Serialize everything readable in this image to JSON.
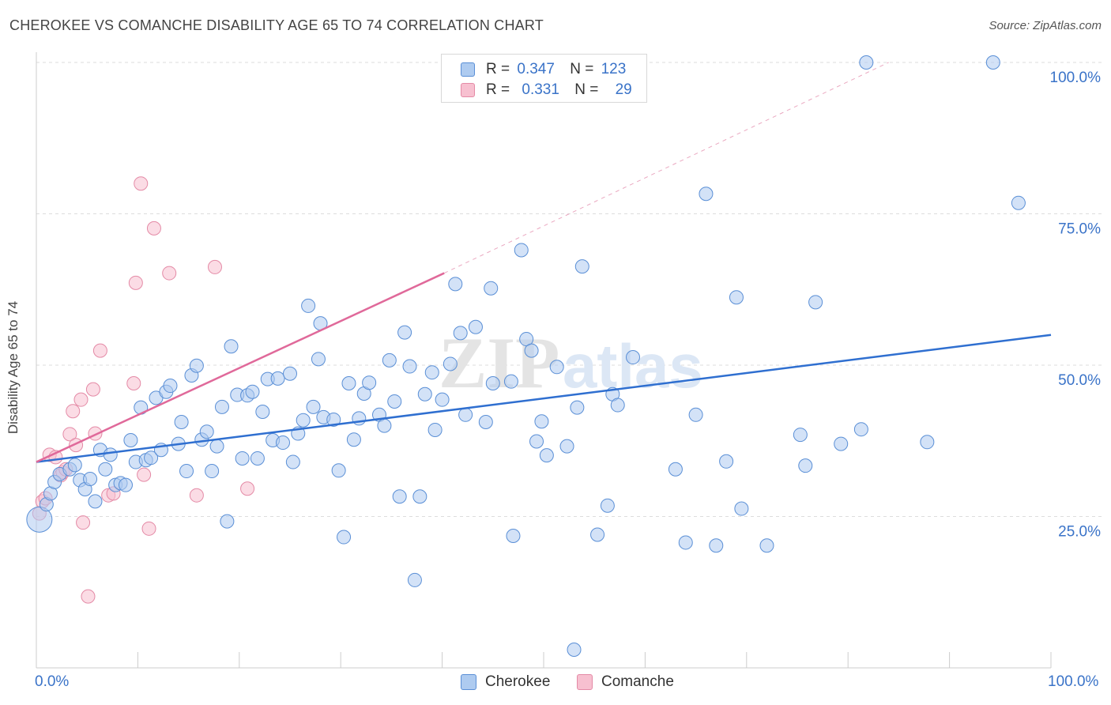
{
  "header": {
    "title": "CHEROKEE VS COMANCHE DISABILITY AGE 65 TO 74 CORRELATION CHART",
    "source": "Source: ZipAtlas.com"
  },
  "legend": {
    "rows": [
      {
        "r_label": "R =",
        "r_value": "0.347",
        "n_label": "N =",
        "n_value": "123"
      },
      {
        "r_label": "R =",
        "r_value": "0.331",
        "n_label": "N =",
        "n_value": "29"
      }
    ]
  },
  "watermark": {
    "zip": "ZIP",
    "atlas": "atlas"
  },
  "chart_data": {
    "type": "scatter",
    "ylabel": "Disability Age 65 to 74",
    "xlim": [
      0,
      100
    ],
    "ylim": [
      0,
      100
    ],
    "x_tick_labels": [
      "0.0%",
      "100.0%"
    ],
    "y_ticks": [
      25,
      50,
      75,
      100
    ],
    "y_tick_labels": [
      "25.0%",
      "50.0%",
      "75.0%",
      "100.0%"
    ],
    "grid": true,
    "legend_placement": "top-center",
    "colors": {
      "cherokee_fill": "#aecbf0",
      "cherokee_stroke": "#5a8fd6",
      "cherokee_line": "#2f6fd0",
      "comanche_fill": "#f7c0d0",
      "comanche_stroke": "#e48aa6",
      "comanche_line": "#e0699a",
      "tick_text": "#3a73c8"
    },
    "series": [
      {
        "name": "Cherokee",
        "trend": {
          "x": [
            0,
            100
          ],
          "y": [
            34,
            55
          ]
        },
        "points": [
          [
            0.3,
            24.5
          ],
          [
            1.0,
            27.0
          ],
          [
            1.4,
            28.8
          ],
          [
            1.8,
            30.7
          ],
          [
            2.3,
            32.0
          ],
          [
            3.3,
            32.8
          ],
          [
            3.8,
            33.5
          ],
          [
            4.3,
            31.0
          ],
          [
            4.8,
            29.5
          ],
          [
            5.3,
            31.2
          ],
          [
            5.8,
            27.5
          ],
          [
            6.3,
            36.0
          ],
          [
            6.8,
            32.8
          ],
          [
            7.3,
            35.2
          ],
          [
            7.8,
            30.2
          ],
          [
            8.3,
            30.5
          ],
          [
            8.8,
            30.2
          ],
          [
            9.3,
            37.6
          ],
          [
            9.8,
            34.0
          ],
          [
            10.3,
            43.0
          ],
          [
            10.8,
            34.3
          ],
          [
            11.3,
            34.7
          ],
          [
            11.8,
            44.6
          ],
          [
            12.3,
            36.0
          ],
          [
            12.8,
            45.6
          ],
          [
            13.2,
            46.6
          ],
          [
            14.0,
            37.0
          ],
          [
            14.3,
            40.6
          ],
          [
            14.8,
            32.5
          ],
          [
            15.3,
            48.3
          ],
          [
            15.8,
            49.9
          ],
          [
            16.3,
            37.7
          ],
          [
            16.8,
            39.0
          ],
          [
            17.3,
            32.5
          ],
          [
            17.8,
            36.6
          ],
          [
            18.3,
            43.1
          ],
          [
            18.8,
            24.2
          ],
          [
            19.2,
            53.1
          ],
          [
            19.8,
            45.1
          ],
          [
            20.3,
            34.6
          ],
          [
            20.8,
            45.0
          ],
          [
            21.3,
            45.6
          ],
          [
            21.8,
            34.6
          ],
          [
            22.3,
            42.3
          ],
          [
            22.8,
            47.7
          ],
          [
            23.3,
            37.6
          ],
          [
            23.8,
            47.8
          ],
          [
            24.3,
            37.2
          ],
          [
            25.0,
            48.6
          ],
          [
            25.3,
            34.0
          ],
          [
            25.8,
            38.7
          ],
          [
            26.3,
            40.9
          ],
          [
            26.8,
            59.8
          ],
          [
            27.3,
            43.1
          ],
          [
            27.8,
            51.0
          ],
          [
            28.0,
            56.9
          ],
          [
            28.3,
            41.4
          ],
          [
            29.3,
            41.0
          ],
          [
            29.8,
            32.6
          ],
          [
            30.3,
            21.6
          ],
          [
            30.8,
            47.0
          ],
          [
            31.3,
            37.7
          ],
          [
            31.8,
            41.2
          ],
          [
            32.3,
            45.3
          ],
          [
            32.8,
            47.1
          ],
          [
            33.8,
            41.8
          ],
          [
            34.3,
            40.0
          ],
          [
            34.8,
            50.8
          ],
          [
            35.3,
            44.0
          ],
          [
            35.8,
            28.3
          ],
          [
            36.3,
            55.4
          ],
          [
            36.8,
            49.8
          ],
          [
            37.3,
            14.5
          ],
          [
            37.8,
            28.3
          ],
          [
            38.3,
            45.2
          ],
          [
            39.0,
            48.8
          ],
          [
            39.3,
            39.3
          ],
          [
            40.0,
            44.3
          ],
          [
            40.8,
            50.2
          ],
          [
            41.3,
            63.4
          ],
          [
            41.8,
            55.3
          ],
          [
            42.3,
            41.8
          ],
          [
            43.3,
            56.3
          ],
          [
            44.3,
            40.6
          ],
          [
            44.8,
            62.7
          ],
          [
            45.0,
            47.0
          ],
          [
            46.8,
            47.3
          ],
          [
            47.0,
            21.8
          ],
          [
            47.8,
            69.0
          ],
          [
            48.3,
            54.3
          ],
          [
            48.8,
            52.4
          ],
          [
            49.3,
            37.4
          ],
          [
            49.8,
            40.7
          ],
          [
            50.3,
            35.1
          ],
          [
            51.3,
            49.7
          ],
          [
            52.3,
            36.6
          ],
          [
            53.3,
            43.0
          ],
          [
            53.8,
            66.3
          ],
          [
            55.3,
            22.0
          ],
          [
            56.3,
            26.8
          ],
          [
            56.8,
            45.2
          ],
          [
            57.3,
            43.4
          ],
          [
            58.8,
            51.3
          ],
          [
            63.0,
            32.8
          ],
          [
            64.0,
            20.7
          ],
          [
            65.0,
            41.8
          ],
          [
            66.0,
            78.3
          ],
          [
            67.0,
            20.2
          ],
          [
            68.0,
            34.1
          ],
          [
            69.0,
            61.2
          ],
          [
            69.5,
            26.3
          ],
          [
            72.0,
            20.2
          ],
          [
            75.3,
            38.5
          ],
          [
            75.8,
            33.4
          ],
          [
            76.8,
            60.4
          ],
          [
            79.3,
            37.0
          ],
          [
            81.3,
            39.4
          ],
          [
            81.8,
            100.0
          ],
          [
            87.8,
            37.3
          ],
          [
            94.3,
            100.0
          ],
          [
            96.8,
            76.8
          ],
          [
            53.0,
            3.0
          ]
        ]
      },
      {
        "name": "Comanche",
        "trend": {
          "x": [
            0,
            40.2
          ],
          "y": [
            34,
            65.2
          ]
        },
        "trend_ext": {
          "x": [
            40.2,
            84
          ],
          "y": [
            65.2,
            100
          ]
        },
        "points": [
          [
            0.3,
            25.5
          ],
          [
            0.6,
            27.5
          ],
          [
            0.9,
            28.0
          ],
          [
            1.3,
            35.2
          ],
          [
            1.9,
            34.8
          ],
          [
            2.4,
            31.8
          ],
          [
            2.6,
            32.3
          ],
          [
            2.9,
            32.8
          ],
          [
            3.3,
            38.6
          ],
          [
            3.6,
            42.4
          ],
          [
            3.9,
            36.8
          ],
          [
            4.4,
            44.3
          ],
          [
            4.6,
            24.0
          ],
          [
            5.1,
            11.8
          ],
          [
            5.6,
            46.0
          ],
          [
            5.8,
            38.7
          ],
          [
            6.3,
            52.4
          ],
          [
            7.1,
            28.5
          ],
          [
            7.6,
            28.8
          ],
          [
            9.6,
            47.0
          ],
          [
            9.8,
            63.6
          ],
          [
            10.3,
            80.0
          ],
          [
            10.6,
            31.9
          ],
          [
            11.1,
            23.0
          ],
          [
            11.6,
            72.6
          ],
          [
            13.1,
            65.2
          ],
          [
            15.8,
            28.5
          ],
          [
            17.6,
            66.2
          ],
          [
            20.8,
            29.6
          ]
        ]
      }
    ]
  }
}
